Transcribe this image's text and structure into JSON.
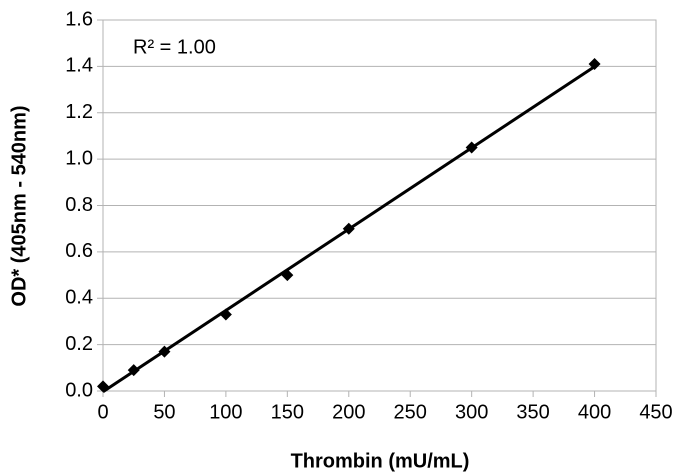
{
  "chart_data": {
    "type": "scatter",
    "x_label": "Thrombin (mU/mL)",
    "y_label": "OD* (405nm - 540nm)",
    "annotation": "R² = 1.00",
    "x": [
      0,
      25,
      50,
      100,
      150,
      200,
      300,
      400
    ],
    "values": [
      0.02,
      0.09,
      0.17,
      0.33,
      0.5,
      0.7,
      1.05,
      1.41
    ],
    "color": "#000000",
    "trendline": true,
    "grid": true,
    "xlim": [
      0,
      450
    ],
    "xticks": [
      0,
      50,
      100,
      150,
      200,
      250,
      300,
      350,
      400,
      450
    ],
    "ylim": [
      0,
      1.6
    ],
    "yticks": [
      {
        "value": 0,
        "label": "0.0"
      },
      0.2,
      0.4,
      0.6,
      0.8,
      {
        "value": 1,
        "label": "1.0"
      },
      1.2,
      1.4,
      1.6
    ]
  }
}
